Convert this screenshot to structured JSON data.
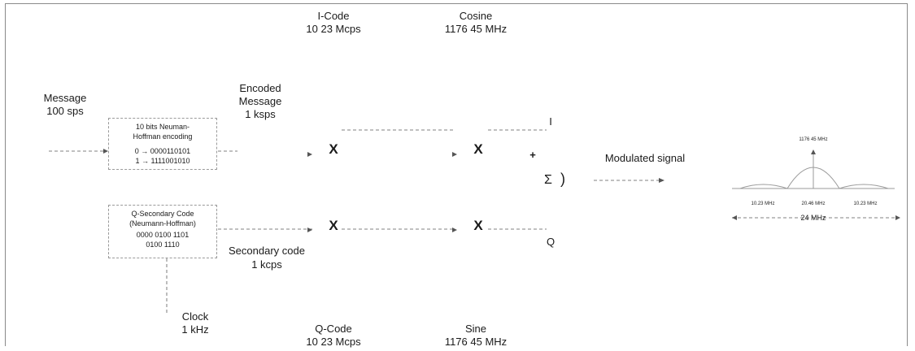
{
  "top": {
    "i_code": {
      "title": "I-Code",
      "rate": "10 23 Mcps"
    },
    "cosine": {
      "title": "Cosine",
      "freq": "1176 45 MHz"
    }
  },
  "bottom": {
    "q_code": {
      "title": "Q-Code",
      "rate": "10 23 Mcps"
    },
    "sine": {
      "title": "Sine",
      "freq": "1176 45 MHz"
    }
  },
  "message": {
    "title": "Message",
    "rate": "100 sps"
  },
  "encoder": {
    "title1": "10 bits Neuman-",
    "title2": "Hoffman encoding",
    "map0": "0 → 0000110101",
    "map1": "1 → 1111001010"
  },
  "encoded": {
    "line1": "Encoded",
    "line2": "Message",
    "rate": "1 ksps"
  },
  "secondary_box": {
    "line1": "Q-Secondary Code",
    "line2": "(Neumann-Hoffman)",
    "line3": "0000 0100 1101",
    "line4": "0100 1110"
  },
  "secondary": {
    "title": "Secondary code",
    "rate": "1 kcps"
  },
  "clock": {
    "title": "Clock",
    "rate": "1 kHz"
  },
  "mixer_symbol": "X",
  "sum_symbol": "Σ",
  "branch_i": "I",
  "branch_q": "Q",
  "plus_sign": "+",
  "modulated": "Modulated signal",
  "spectrum": {
    "center_freq": "1176 45 MHz",
    "mid_label": "20.46 MHz",
    "side_label": "10.23 MHz",
    "bandwidth": "24 MHz"
  }
}
